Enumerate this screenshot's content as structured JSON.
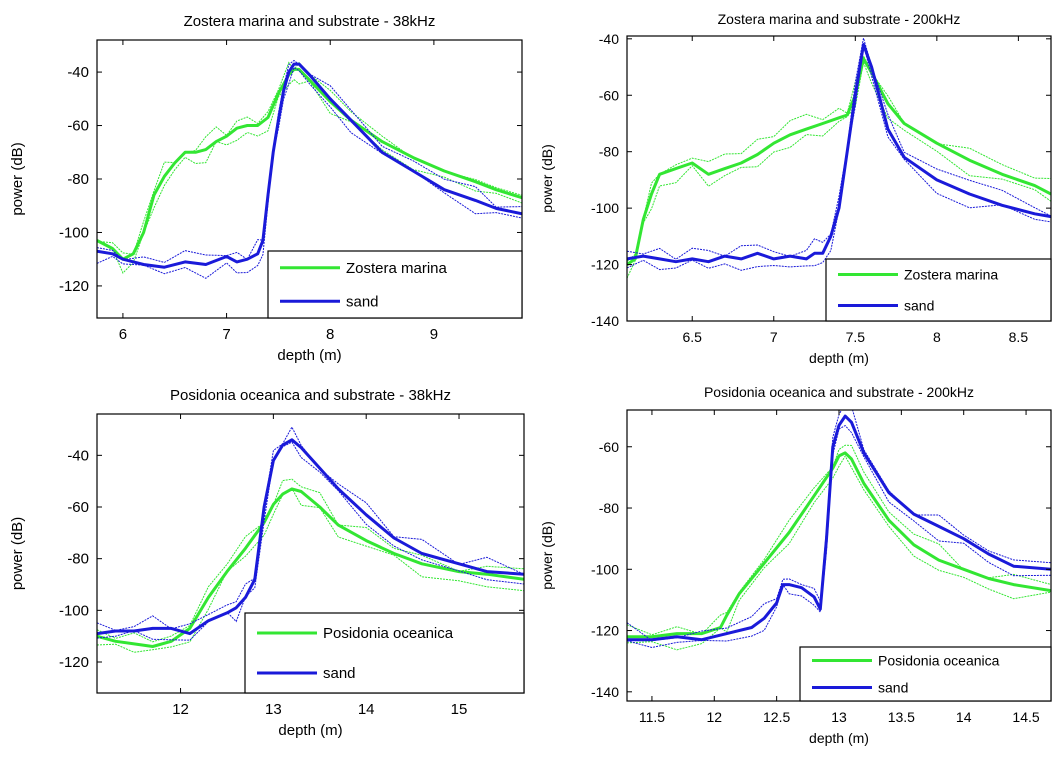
{
  "colors": {
    "green": "#33e633",
    "blue": "#1a1ad9",
    "axis": "#000000",
    "background": "#ffffff"
  },
  "chart_data": [
    {
      "type": "line",
      "title": "Zostera marina and substrate - 38kHz",
      "xlabel": "depth (m)",
      "ylabel": "power (dB)",
      "xlim": [
        5.75,
        9.85
      ],
      "ylim": [
        -132,
        -28
      ],
      "xticks": [
        6,
        7,
        8,
        9
      ],
      "yticks": [
        -120,
        -100,
        -80,
        -60,
        -40
      ],
      "grid": false,
      "legend": "lower-right",
      "series": [
        {
          "name": "Zostera marina",
          "color": "green",
          "x": [
            5.75,
            5.9,
            6.0,
            6.1,
            6.2,
            6.3,
            6.4,
            6.5,
            6.6,
            6.7,
            6.8,
            6.9,
            7.0,
            7.1,
            7.2,
            7.3,
            7.4,
            7.5,
            7.6,
            7.65,
            7.7,
            7.8,
            8.0,
            8.2,
            8.5,
            8.8,
            9.1,
            9.4,
            9.6,
            9.85
          ],
          "y": [
            -103,
            -106,
            -110,
            -108,
            -100,
            -86,
            -79,
            -74,
            -70,
            -70,
            -69,
            -66,
            -64,
            -61,
            -60,
            -60,
            -57,
            -48,
            -41,
            -39,
            -39,
            -43,
            -51,
            -58,
            -66,
            -72,
            -77,
            -81,
            -84,
            -87
          ]
        },
        {
          "name": "sand",
          "color": "blue",
          "x": [
            5.75,
            5.9,
            6.0,
            6.2,
            6.4,
            6.6,
            6.8,
            7.0,
            7.1,
            7.2,
            7.3,
            7.35,
            7.4,
            7.45,
            7.5,
            7.55,
            7.6,
            7.65,
            7.7,
            7.8,
            8.0,
            8.2,
            8.5,
            8.8,
            9.1,
            9.4,
            9.6,
            9.85
          ],
          "y": [
            -107,
            -108,
            -110,
            -112,
            -113,
            -111,
            -112,
            -109,
            -111,
            -110,
            -108,
            -103,
            -86,
            -70,
            -58,
            -47,
            -40,
            -37,
            -37,
            -41,
            -50,
            -58,
            -70,
            -77,
            -84,
            -88,
            -91,
            -93
          ]
        }
      ]
    },
    {
      "type": "line",
      "title": "Zostera marina and substrate - 200kHz",
      "xlabel": "depth (m)",
      "ylabel": "power (dB)",
      "xlim": [
        6.1,
        8.7
      ],
      "ylim": [
        -140,
        -39
      ],
      "xticks": [
        6.5,
        7,
        7.5,
        8,
        8.5
      ],
      "yticks": [
        -140,
        -120,
        -100,
        -80,
        -60,
        -40
      ],
      "grid": false,
      "legend": "lower-right",
      "series": [
        {
          "name": "Zostera marina",
          "color": "green",
          "x": [
            6.1,
            6.15,
            6.2,
            6.25,
            6.3,
            6.4,
            6.5,
            6.6,
            6.7,
            6.8,
            6.9,
            7.0,
            7.1,
            7.2,
            7.3,
            7.4,
            7.45,
            7.5,
            7.55,
            7.6,
            7.7,
            7.8,
            8.0,
            8.2,
            8.4,
            8.6,
            8.7
          ],
          "y": [
            -120,
            -118,
            -104,
            -95,
            -88,
            -86,
            -84,
            -88,
            -86,
            -84,
            -81,
            -77,
            -74,
            -72,
            -70,
            -68,
            -67,
            -60,
            -47,
            -52,
            -63,
            -70,
            -77,
            -83,
            -88,
            -92,
            -95
          ]
        },
        {
          "name": "sand",
          "color": "blue",
          "x": [
            6.1,
            6.2,
            6.3,
            6.4,
            6.5,
            6.6,
            6.7,
            6.8,
            6.9,
            7.0,
            7.1,
            7.2,
            7.25,
            7.3,
            7.35,
            7.4,
            7.45,
            7.5,
            7.55,
            7.6,
            7.7,
            7.8,
            8.0,
            8.2,
            8.4,
            8.6,
            8.7
          ],
          "y": [
            -118,
            -117,
            -118,
            -119,
            -118,
            -119,
            -117,
            -118,
            -116,
            -118,
            -117,
            -118,
            -116,
            -116,
            -110,
            -100,
            -80,
            -60,
            -42,
            -50,
            -72,
            -82,
            -90,
            -95,
            -99,
            -102,
            -103
          ]
        }
      ]
    },
    {
      "type": "line",
      "title": "Posidonia oceanica and substrate - 38kHz",
      "xlabel": "depth (m)",
      "ylabel": "power (dB)",
      "xlim": [
        11.1,
        15.7
      ],
      "ylim": [
        -132,
        -24
      ],
      "xticks": [
        12,
        13,
        14,
        15
      ],
      "yticks": [
        -120,
        -100,
        -80,
        -60,
        -40
      ],
      "grid": false,
      "legend": "lower-right",
      "series": [
        {
          "name": "Posidonia oceanica",
          "color": "green",
          "x": [
            11.1,
            11.3,
            11.5,
            11.7,
            11.9,
            12.1,
            12.3,
            12.5,
            12.7,
            12.9,
            13.0,
            13.1,
            13.2,
            13.3,
            13.5,
            13.7,
            14.0,
            14.3,
            14.6,
            15.0,
            15.3,
            15.7
          ],
          "y": [
            -110,
            -112,
            -113,
            -114,
            -112,
            -107,
            -95,
            -85,
            -76,
            -66,
            -59,
            -55,
            -53,
            -54,
            -60,
            -67,
            -73,
            -78,
            -82,
            -85,
            -86,
            -88
          ]
        },
        {
          "name": "sand",
          "color": "blue",
          "x": [
            11.1,
            11.3,
            11.5,
            11.7,
            11.9,
            12.1,
            12.3,
            12.5,
            12.6,
            12.7,
            12.8,
            12.9,
            13.0,
            13.1,
            13.2,
            13.3,
            13.5,
            13.7,
            14.0,
            14.3,
            14.6,
            15.0,
            15.3,
            15.7
          ],
          "y": [
            -109,
            -108,
            -108,
            -107,
            -107,
            -109,
            -104,
            -101,
            -99,
            -95,
            -88,
            -60,
            -42,
            -36,
            -34,
            -37,
            -45,
            -53,
            -63,
            -72,
            -78,
            -82,
            -85,
            -86
          ]
        }
      ]
    },
    {
      "type": "line",
      "title": "Posidonia oceanica and substrate - 200kHz",
      "xlabel": "depth (m)",
      "ylabel": "power (dB)",
      "xlim": [
        11.3,
        14.7
      ],
      "ylim": [
        -143,
        -48
      ],
      "xticks": [
        11.5,
        12,
        12.5,
        13,
        13.5,
        14,
        14.5
      ],
      "yticks": [
        -140,
        -120,
        -100,
        -80,
        -60
      ],
      "grid": false,
      "legend": "lower-right",
      "series": [
        {
          "name": "Posidonia oceanica",
          "color": "green",
          "x": [
            11.3,
            11.5,
            11.7,
            11.9,
            12.05,
            12.1,
            12.2,
            12.4,
            12.6,
            12.8,
            12.95,
            13.0,
            13.05,
            13.1,
            13.2,
            13.4,
            13.6,
            13.8,
            14.0,
            14.2,
            14.4,
            14.7
          ],
          "y": [
            -122,
            -122,
            -121,
            -121,
            -119,
            -115,
            -108,
            -98,
            -88,
            -76,
            -67,
            -63,
            -62,
            -64,
            -72,
            -84,
            -92,
            -97,
            -100,
            -103,
            -105,
            -107
          ]
        },
        {
          "name": "sand",
          "color": "blue",
          "x": [
            11.3,
            11.5,
            11.7,
            11.9,
            12.1,
            12.3,
            12.4,
            12.5,
            12.55,
            12.6,
            12.7,
            12.8,
            12.85,
            12.9,
            12.95,
            13.0,
            13.05,
            13.1,
            13.2,
            13.4,
            13.6,
            13.8,
            14.0,
            14.2,
            14.4,
            14.7
          ],
          "y": [
            -123,
            -123,
            -122,
            -123,
            -121,
            -119,
            -116,
            -111,
            -105,
            -105,
            -106,
            -109,
            -113,
            -90,
            -60,
            -53,
            -50,
            -52,
            -62,
            -75,
            -82,
            -86,
            -90,
            -95,
            -99,
            -100
          ]
        }
      ]
    }
  ]
}
